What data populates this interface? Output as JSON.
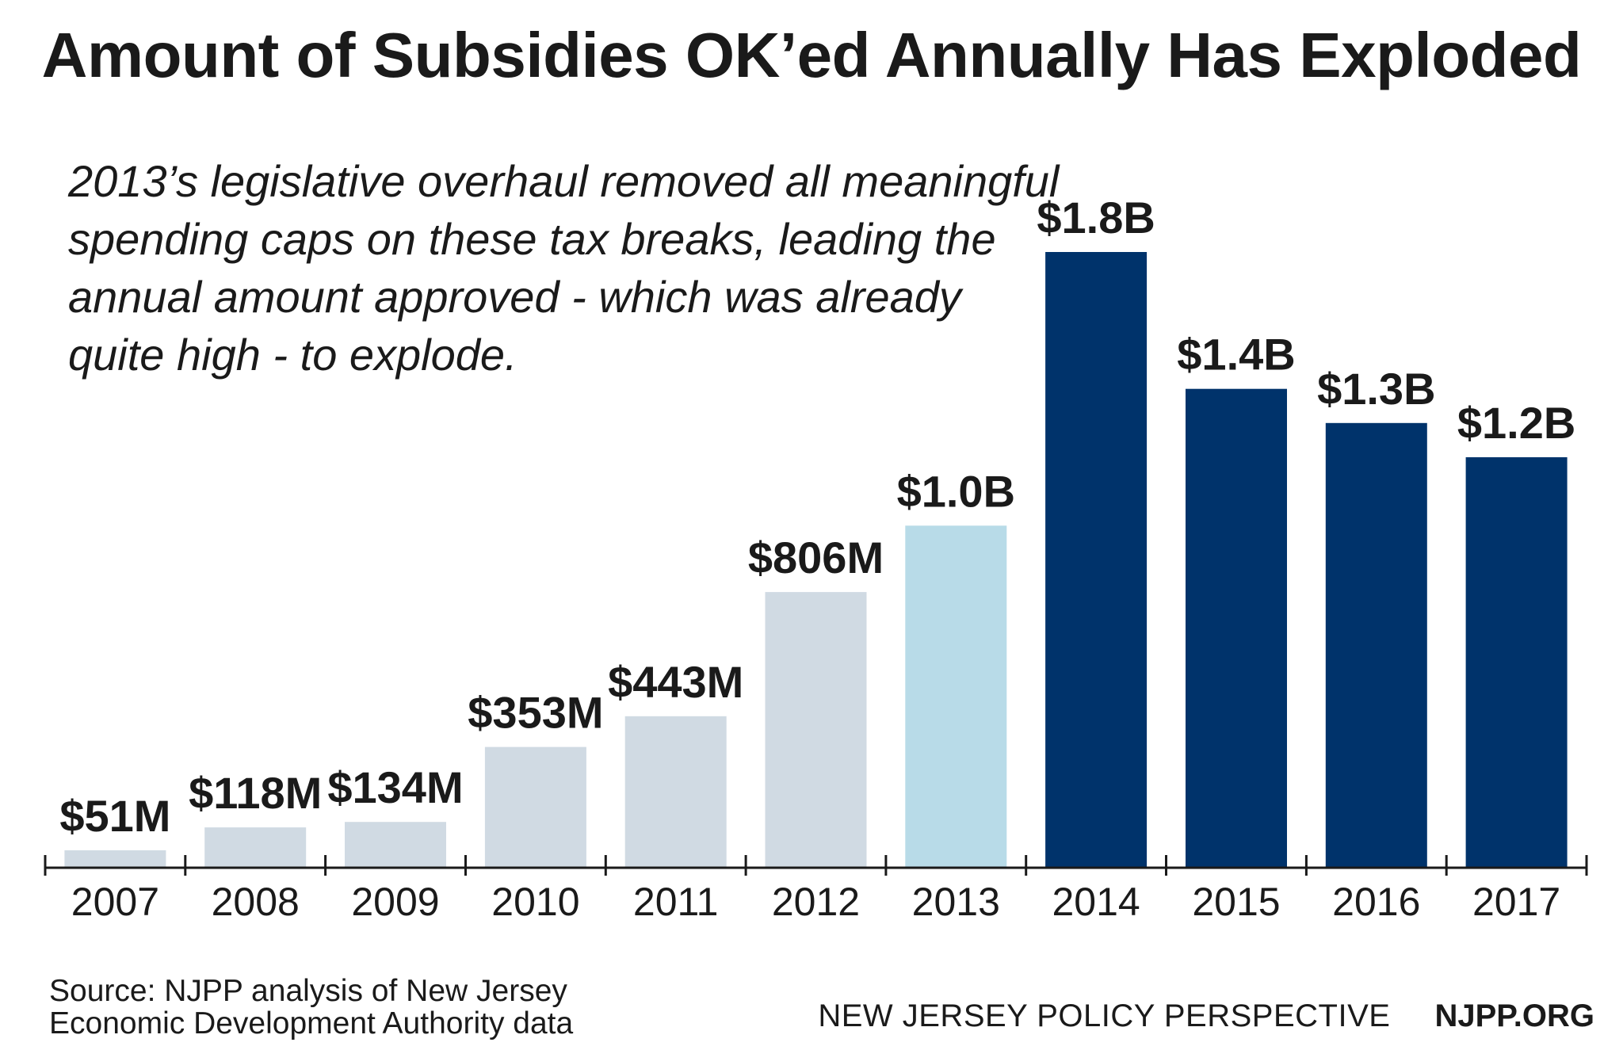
{
  "chart_data": {
    "type": "bar",
    "title": "Amount of Subsidies OK’ed Annually Has Exploded",
    "annotation": "2013’s legislative overhaul removed all meaningful spending caps on these tax breaks, leading the annual amount approved - which was already quite high - to explode.",
    "categories": [
      "2007",
      "2008",
      "2009",
      "2010",
      "2011",
      "2012",
      "2013",
      "2014",
      "2015",
      "2016",
      "2017"
    ],
    "values": [
      0.051,
      0.118,
      0.134,
      0.353,
      0.443,
      0.806,
      1.0,
      1.8,
      1.4,
      1.3,
      1.2
    ],
    "value_unit": "billion USD",
    "data_labels": [
      "$51M",
      "$118M",
      "$134M",
      "$353M",
      "$443M",
      "$806M",
      "$1.0B",
      "$1.8B",
      "$1.4B",
      "$1.3B",
      "$1.2B"
    ],
    "bar_colors": [
      "#d0dae3",
      "#d0dae3",
      "#d0dae3",
      "#d0dae3",
      "#d0dae3",
      "#d0dae3",
      "#b8dbe8",
      "#00336b",
      "#00336b",
      "#00336b",
      "#00336b"
    ],
    "ylim": [
      0,
      1.8
    ],
    "xlabel": "",
    "ylabel": "",
    "grid": false,
    "legend": "none"
  },
  "source": {
    "line1": "Source: NJPP analysis of New Jersey",
    "line2": "Economic Development Authority data"
  },
  "footer": {
    "org": "NEW JERSEY POLICY PERSPECTIVE",
    "url": "NJPP.ORG"
  },
  "colors": {
    "axis": "#1a1a1a",
    "text": "#1a1a1a"
  }
}
